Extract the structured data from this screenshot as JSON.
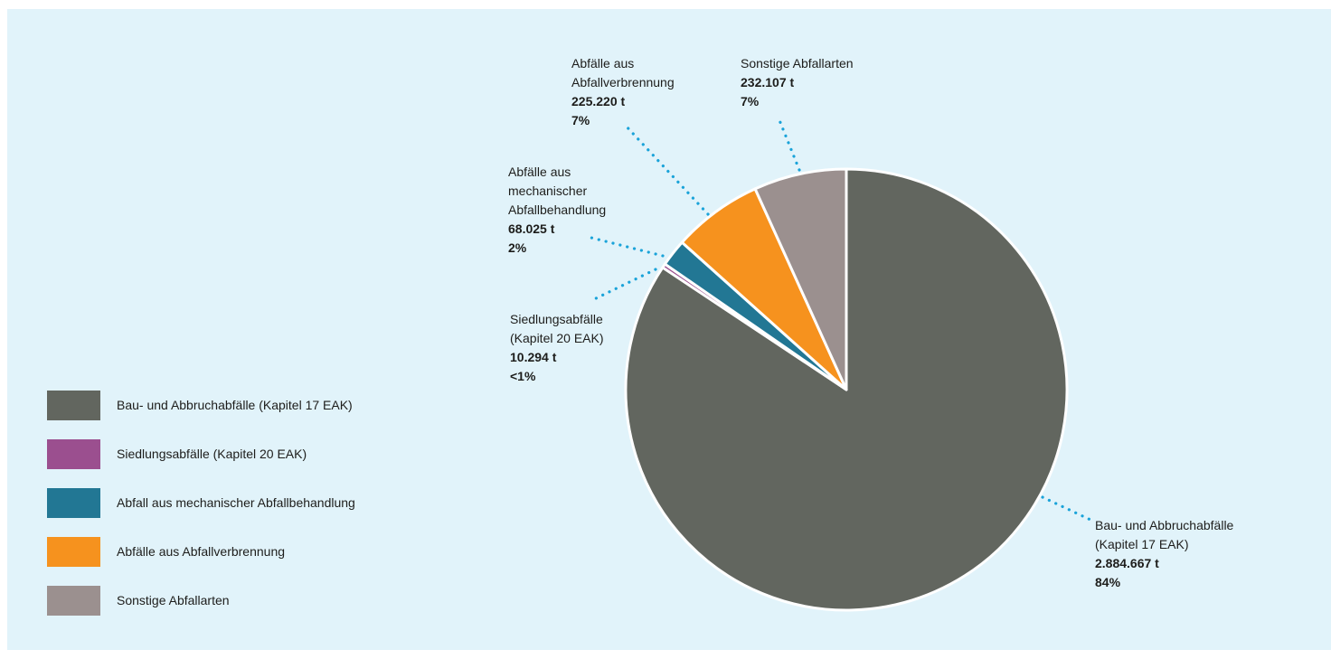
{
  "chart_data": {
    "type": "pie",
    "unit": "t",
    "slices": [
      {
        "key": "bau",
        "legend": "Bau- und Abbruchabfälle (Kapitel 17 EAK)",
        "label_lines": [
          "Bau- und Abbruchabfälle",
          "(Kapitel 17 EAK)"
        ],
        "value": 2884667,
        "value_label": "2.884.667 t",
        "percent_label": "84%",
        "color": "#62665f"
      },
      {
        "key": "siedlung",
        "legend": "Siedlungsabfälle (Kapitel 20 EAK)",
        "label_lines": [
          "Siedlungsabfälle",
          "(Kapitel 20 EAK)"
        ],
        "value": 10294,
        "value_label": "10.294 t",
        "percent_label": "<1%",
        "color": "#9b4f8f"
      },
      {
        "key": "mechanisch",
        "legend": "Abfall aus mechanischer Abfallbehandlung",
        "label_lines": [
          "Abfälle aus",
          "mechanischer",
          "Abfallbehandlung"
        ],
        "value": 68025,
        "value_label": "68.025 t",
        "percent_label": "2%",
        "color": "#227794"
      },
      {
        "key": "verbrennung",
        "legend": "Abfälle aus Abfallverbrennung",
        "label_lines": [
          "Abfälle aus",
          "Abfallverbrennung"
        ],
        "value": 225220,
        "value_label": "225.220 t",
        "percent_label": "7%",
        "color": "#f6921e"
      },
      {
        "key": "sonstige",
        "legend": "Sonstige Abfallarten",
        "label_lines": [
          "Sonstige Abfallarten"
        ],
        "value": 232107,
        "value_label": "232.107 t",
        "percent_label": "7%",
        "color": "#9b908f"
      }
    ],
    "slice_order_clockwise_from_top": [
      "bau",
      "siedlung",
      "mechanisch",
      "verbrennung",
      "sonstige"
    ],
    "legend_position": "left",
    "leader_line_color": "#1aa3d9",
    "slice_border_color": "#ffffff"
  }
}
